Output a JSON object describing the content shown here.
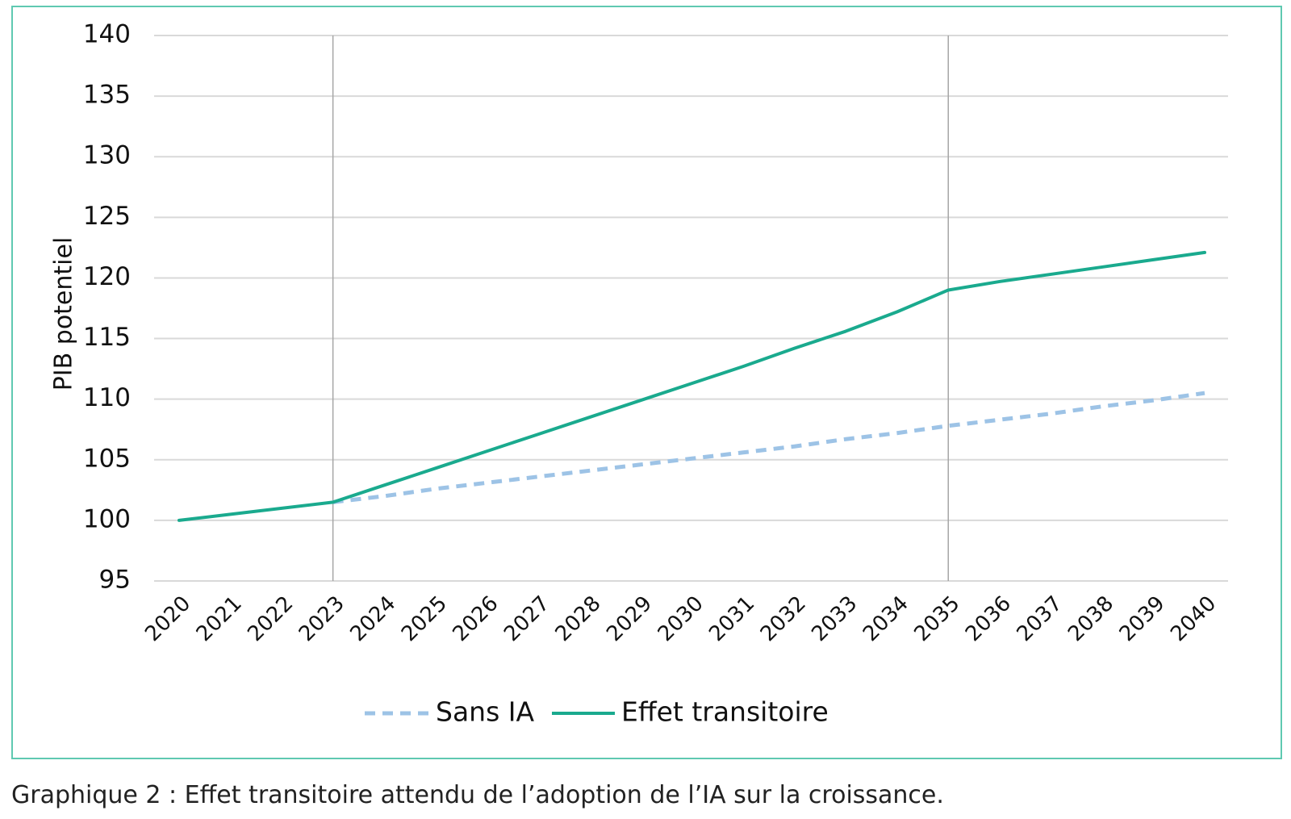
{
  "caption": "Graphique 2 : Effet transitoire attendu de l’adoption de l’IA sur la croissance.",
  "chart_data": {
    "type": "line",
    "ylabel": "PIB potentiel",
    "xlabel": "",
    "ylim": [
      95,
      140
    ],
    "yticks": [
      95,
      100,
      105,
      110,
      115,
      120,
      125,
      130,
      135,
      140
    ],
    "grid": true,
    "legend_position": "bottom",
    "reference_lines_x": [
      "2023",
      "2035"
    ],
    "categories": [
      "2020",
      "2021",
      "2022",
      "2023",
      "2024",
      "2025",
      "2026",
      "2027",
      "2028",
      "2029",
      "2030",
      "2031",
      "2032",
      "2033",
      "2034",
      "2035",
      "2036",
      "2037",
      "2038",
      "2039",
      "2040"
    ],
    "series": [
      {
        "name": "Sans IA",
        "style": "dashed",
        "color": "#9dc3e6",
        "values": [
          null,
          null,
          null,
          101.5,
          102.0,
          102.6,
          103.1,
          103.6,
          104.1,
          104.6,
          105.1,
          105.6,
          106.1,
          106.7,
          107.2,
          107.8,
          108.3,
          108.8,
          109.4,
          109.9,
          110.5
        ]
      },
      {
        "name": "Effet transitoire",
        "style": "solid",
        "color": "#1aaa8e",
        "values": [
          100.0,
          100.5,
          101.0,
          101.5,
          102.9,
          104.3,
          105.7,
          107.1,
          108.5,
          109.9,
          111.3,
          112.7,
          114.2,
          115.6,
          117.2,
          119.0,
          119.7,
          120.3,
          120.9,
          121.5,
          122.1
        ]
      }
    ]
  }
}
